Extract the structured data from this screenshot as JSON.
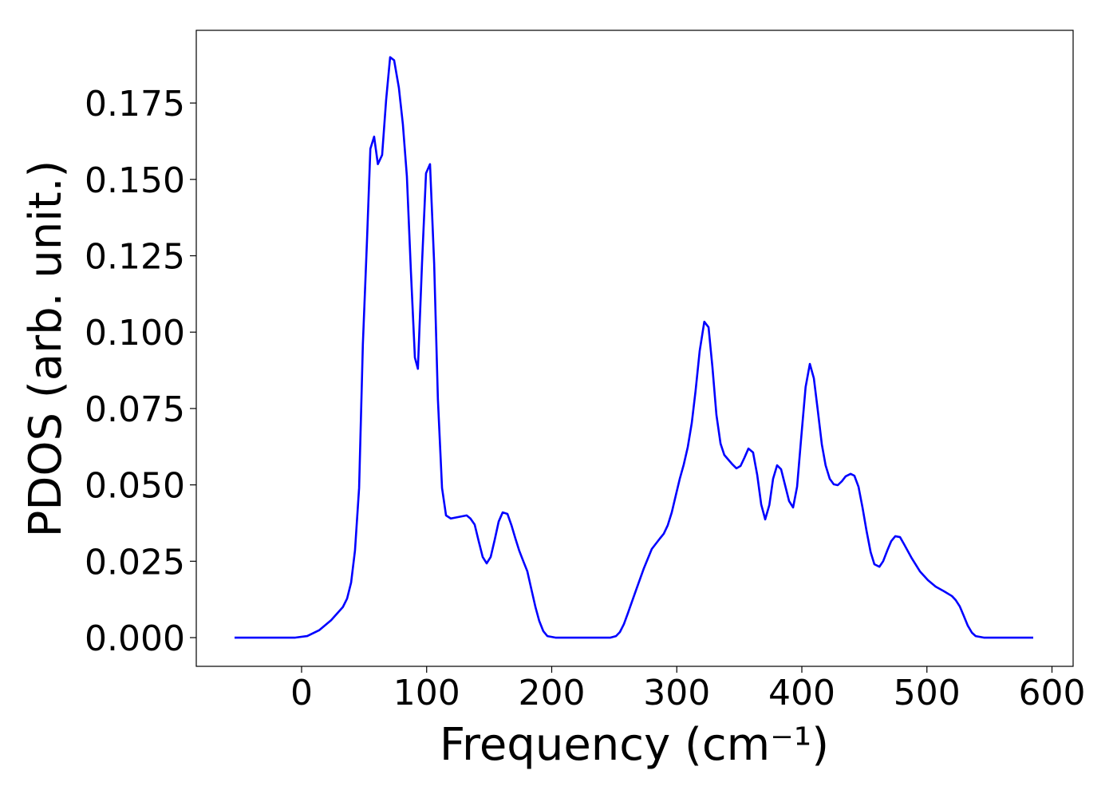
{
  "chart_data": {
    "type": "line",
    "xlabel": "Frequency (cm⁻¹)",
    "ylabel": "PDOS (arb. unit.)",
    "x": [
      -53.6,
      -5,
      4.5,
      14,
      23.6,
      33,
      36.4,
      39.6,
      42.7,
      46,
      49,
      52.3,
      55,
      58,
      61,
      64.4,
      67.6,
      70.8,
      74,
      77.8,
      81,
      84.2,
      87.4,
      90.6,
      93,
      96.3,
      99.5,
      102.7,
      106,
      109,
      112.3,
      115.5,
      119.3,
      132,
      135,
      138.4,
      141.6,
      144.8,
      148,
      151.2,
      154.4,
      157.6,
      160.8,
      164.6,
      167.8,
      171,
      174,
      177.3,
      180.5,
      183.7,
      187,
      190,
      193.3,
      196.5,
      203,
      247,
      251.4,
      254.5,
      257.7,
      261,
      267.3,
      273.7,
      280,
      286.4,
      289.6,
      292.8,
      296,
      299,
      302.4,
      305.6,
      308.8,
      312,
      315,
      318.3,
      322,
      325.4,
      328.5,
      331.7,
      335,
      338,
      344.5,
      347.7,
      351,
      354,
      357.3,
      361,
      364.3,
      367.5,
      370.7,
      374,
      377,
      380.2,
      383.4,
      386.6,
      389.8,
      393,
      396.2,
      399.4,
      403,
      406.4,
      409.6,
      412.8,
      416,
      419,
      422.3,
      425.5,
      428.7,
      432,
      435,
      439,
      442,
      445.3,
      448.5,
      451.7,
      455,
      458,
      462,
      465,
      468.3,
      471.5,
      474.7,
      478.5,
      481.7,
      488,
      494.4,
      500.8,
      507,
      513.6,
      520,
      523,
      526.3,
      529.5,
      532.7,
      536,
      539,
      545.5,
      585
    ],
    "series": [
      {
        "color": "#0000ff",
        "values": [
          0,
          0,
          0.0005,
          0.0024,
          0.0057,
          0.01,
          0.0128,
          0.018,
          0.0285,
          0.049,
          0.096,
          0.13,
          0.16,
          0.164,
          0.155,
          0.158,
          0.176,
          0.19,
          0.189,
          0.18,
          0.168,
          0.151,
          0.12,
          0.0917,
          0.088,
          0.1225,
          0.152,
          0.155,
          0.1225,
          0.078,
          0.049,
          0.04,
          0.039,
          0.04,
          0.039,
          0.037,
          0.0316,
          0.0264,
          0.0243,
          0.0264,
          0.032,
          0.038,
          0.041,
          0.0405,
          0.0368,
          0.0324,
          0.0285,
          0.025,
          0.0217,
          0.0159,
          0.01,
          0.0055,
          0.0021,
          0.0005,
          0,
          0,
          0.0005,
          0.0018,
          0.0044,
          0.0081,
          0.0154,
          0.0227,
          0.029,
          0.0324,
          0.034,
          0.0368,
          0.041,
          0.0462,
          0.052,
          0.0567,
          0.0624,
          0.0703,
          0.0807,
          0.0938,
          0.1034,
          0.1016,
          0.0886,
          0.0729,
          0.0635,
          0.0598,
          0.0567,
          0.0554,
          0.0562,
          0.0588,
          0.0619,
          0.0606,
          0.0533,
          0.0436,
          0.0387,
          0.0434,
          0.052,
          0.0564,
          0.0551,
          0.0499,
          0.0447,
          0.0426,
          0.0494,
          0.065,
          0.082,
          0.0896,
          0.0849,
          0.0742,
          0.0632,
          0.0564,
          0.052,
          0.0502,
          0.0499,
          0.0512,
          0.0528,
          0.0536,
          0.053,
          0.0494,
          0.0426,
          0.035,
          0.028,
          0.024,
          0.0232,
          0.025,
          0.0285,
          0.0316,
          0.0332,
          0.0329,
          0.0306,
          0.0259,
          0.0217,
          0.0188,
          0.0167,
          0.0152,
          0.0136,
          0.0123,
          0.0102,
          0.0071,
          0.0039,
          0.0016,
          0.0005,
          0,
          0
        ]
      }
    ],
    "xlim": [
      -84.2,
      616.9
    ],
    "xticks": [
      0,
      100,
      200,
      300,
      400,
      500,
      600
    ],
    "ylim": [
      -0.0094,
      0.1988
    ],
    "yticks": [
      {
        "value": 0,
        "label": "0.000"
      },
      0.025,
      {
        "value": 0.05,
        "label": "0.050"
      },
      0.075,
      {
        "value": 0.1,
        "label": "0.100"
      },
      0.125,
      {
        "value": 0.15,
        "label": "0.150"
      },
      0.175
    ],
    "grid": false
  }
}
